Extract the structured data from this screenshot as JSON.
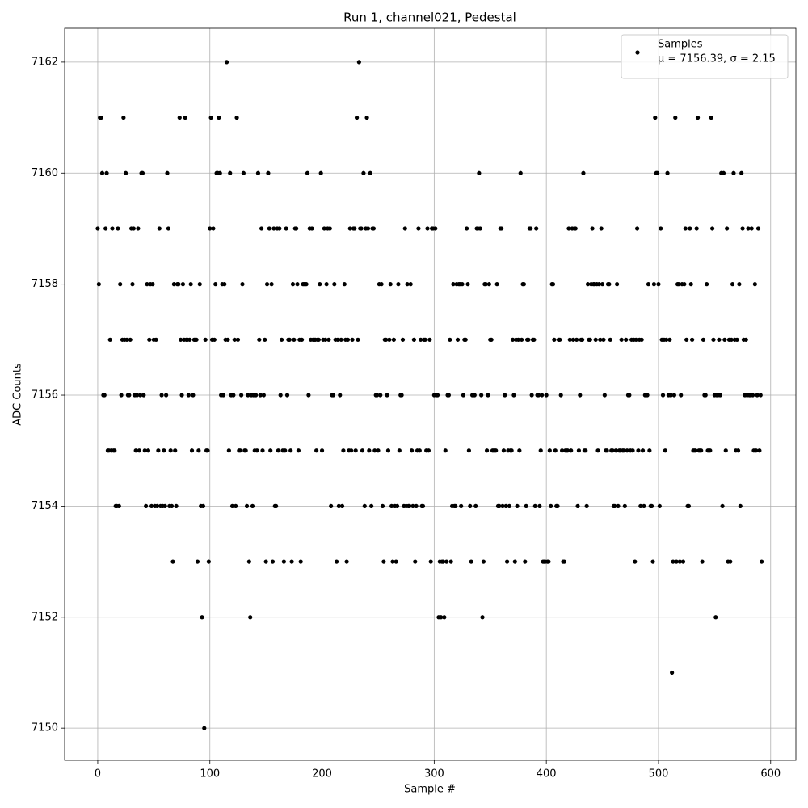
{
  "chart_data": {
    "type": "scatter",
    "title": "Run 1, channel021, Pedestal",
    "xlabel": "Sample #",
    "ylabel": "ADC Counts",
    "xlim": [
      -29.5,
      622.5
    ],
    "ylim": [
      7149.42,
      7162.61
    ],
    "xticks": [
      0,
      100,
      200,
      300,
      400,
      500,
      600
    ],
    "yticks": [
      7150,
      7152,
      7154,
      7156,
      7158,
      7160,
      7162
    ],
    "grid": true,
    "legend": "upper right",
    "x": [
      0,
      1,
      2,
      3,
      4,
      5,
      6,
      7,
      8,
      9,
      10,
      11,
      12,
      13,
      14,
      15,
      16,
      17,
      18,
      19,
      20,
      21,
      22,
      23,
      24,
      25,
      26,
      27,
      28,
      29,
      30,
      31,
      32,
      33,
      34,
      35,
      36,
      37,
      38,
      39,
      40,
      41,
      42,
      43,
      44,
      45,
      46,
      47,
      48,
      49,
      50,
      51,
      52,
      53,
      54,
      55,
      56,
      57,
      58,
      59,
      60,
      61,
      62,
      63,
      64,
      65,
      66,
      67,
      68,
      69,
      70,
      71,
      72,
      73,
      74,
      75,
      76,
      77,
      78,
      79,
      80,
      81,
      82,
      83,
      84,
      85,
      86,
      87,
      88,
      89,
      90,
      91,
      92,
      93,
      94,
      95,
      96,
      97,
      98,
      99,
      100,
      101,
      102,
      103,
      104,
      105,
      106,
      107,
      108,
      109,
      110,
      111,
      112,
      113,
      114,
      115,
      116,
      117,
      118,
      119,
      120,
      121,
      122,
      123,
      124,
      125,
      126,
      127,
      128,
      129,
      130,
      131,
      132,
      133,
      134,
      135,
      136,
      137,
      138,
      139,
      140,
      141,
      142,
      143,
      144,
      145,
      146,
      147,
      148,
      149,
      150,
      151,
      152,
      153,
      154,
      155,
      156,
      157,
      158,
      159,
      160,
      161,
      162,
      163,
      164,
      165,
      166,
      167,
      168,
      169,
      170,
      171,
      172,
      173,
      174,
      175,
      176,
      177,
      178,
      179,
      180,
      181,
      182,
      183,
      184,
      185,
      186,
      187,
      188,
      189,
      190,
      191,
      192,
      193,
      194,
      195,
      196,
      197,
      198,
      199,
      200,
      201,
      202,
      203,
      204,
      205,
      206,
      207,
      208,
      209,
      210,
      211,
      212,
      213,
      214,
      215,
      216,
      217,
      218,
      219,
      220,
      221,
      222,
      223,
      224,
      225,
      226,
      227,
      228,
      229,
      230,
      231,
      232,
      233,
      234,
      235,
      236,
      237,
      238,
      239,
      240,
      241,
      242,
      243,
      244,
      245,
      246,
      247,
      248,
      249,
      250,
      251,
      252,
      253,
      254,
      255,
      256,
      257,
      258,
      259,
      260,
      261,
      262,
      263,
      264,
      265,
      266,
      267,
      268,
      269,
      270,
      271,
      272,
      273,
      274,
      275,
      276,
      277,
      278,
      279,
      280,
      281,
      282,
      283,
      284,
      285,
      286,
      287,
      288,
      289,
      290,
      291,
      292,
      293,
      294,
      295,
      296,
      297,
      298,
      299,
      300,
      301,
      302,
      303,
      304,
      305,
      306,
      307,
      308,
      309,
      310,
      311,
      312,
      313,
      314,
      315,
      316,
      317,
      318,
      319,
      320,
      321,
      322,
      323,
      324,
      325,
      326,
      327,
      328,
      329,
      330,
      331,
      332,
      333,
      334,
      335,
      336,
      337,
      338,
      339,
      340,
      341,
      342,
      343,
      344,
      345,
      346,
      347,
      348,
      349,
      350,
      351,
      352,
      353,
      354,
      355,
      356,
      357,
      358,
      359,
      360,
      361,
      362,
      363,
      364,
      365,
      366,
      367,
      368,
      369,
      370,
      371,
      372,
      373,
      374,
      375,
      376,
      377,
      378,
      379,
      380,
      381,
      382,
      383,
      384,
      385,
      386,
      387,
      388,
      389,
      390,
      391,
      392,
      393,
      394,
      395,
      396,
      397,
      398,
      399,
      400,
      401,
      402,
      403,
      404,
      405,
      406,
      407,
      408,
      409,
      410,
      411,
      412,
      413,
      414,
      415,
      416,
      417,
      418,
      419,
      420,
      421,
      422,
      423,
      424,
      425,
      426,
      427,
      428,
      429,
      430,
      431,
      432,
      433,
      434,
      435,
      436,
      437,
      438,
      439,
      440,
      441,
      442,
      443,
      444,
      445,
      446,
      447,
      448,
      449,
      450,
      451,
      452,
      453,
      454,
      455,
      456,
      457,
      458,
      459,
      460,
      461,
      462,
      463,
      464,
      465,
      466,
      467,
      468,
      469,
      470,
      471,
      472,
      473,
      474,
      475,
      476,
      477,
      478,
      479,
      480,
      481,
      482,
      483,
      484,
      485,
      486,
      487,
      488,
      489,
      490,
      491,
      492,
      493,
      494,
      495,
      496,
      497,
      498,
      499,
      500,
      501,
      502,
      503,
      504,
      505,
      506,
      507,
      508,
      509,
      510,
      511,
      512,
      513,
      514,
      515,
      516,
      517,
      518,
      519,
      520,
      521,
      522,
      523,
      524,
      525,
      526,
      527,
      528,
      529,
      530,
      531,
      532,
      533,
      534,
      535,
      536,
      537,
      538,
      539,
      540,
      541,
      542,
      543,
      544,
      545,
      546,
      547,
      548,
      549,
      550,
      551,
      552,
      553,
      554,
      555,
      556,
      557,
      558,
      559,
      560,
      561,
      562,
      563,
      564,
      565,
      566,
      567,
      568,
      569,
      570,
      571,
      572,
      573,
      574,
      575,
      576,
      577,
      578,
      579,
      580,
      581,
      582,
      583,
      584,
      585,
      586,
      587,
      588,
      589,
      590,
      591,
      592
    ],
    "series": [
      {
        "name": "Samples",
        "stats": "μ = 7156.39, σ = 2.15",
        "color": "#000000",
        "values": [
          7159,
          7158,
          7161,
          7161,
          7160,
          7156,
          7156,
          7159,
          7160,
          7155,
          7155,
          7157,
          7155,
          7159,
          7155,
          7155,
          7154,
          7154,
          7159,
          7154,
          7158,
          7156,
          7157,
          7161,
          7157,
          7160,
          7157,
          7156,
          7156,
          7157,
          7159,
          7158,
          7159,
          7156,
          7155,
          7156,
          7159,
          7155,
          7156,
          7160,
          7160,
          7156,
          7155,
          7154,
          7158,
          7155,
          7157,
          7158,
          7154,
          7158,
          7157,
          7154,
          7157,
          7154,
          7155,
          7159,
          7154,
          7156,
          7154,
          7155,
          7154,
          7156,
          7160,
          7159,
          7154,
          7155,
          7154,
          7153,
          7158,
          7155,
          7154,
          7158,
          7158,
          7161,
          7157,
          7156,
          7158,
          7157,
          7161,
          7157,
          7157,
          7156,
          7157,
          7158,
          7155,
          7156,
          7157,
          7157,
          7157,
          7153,
          7155,
          7158,
          7154,
          7152,
          7154,
          7150,
          7157,
          7155,
          7155,
          7153,
          7159,
          7161,
          7157,
          7159,
          7157,
          7158,
          7160,
          7160,
          7161,
          7160,
          7156,
          7158,
          7156,
          7158,
          7157,
          7162,
          7157,
          7155,
          7160,
          7156,
          7154,
          7156,
          7157,
          7154,
          7161,
          7157,
          7155,
          7155,
          7156,
          7158,
          7160,
          7155,
          7155,
          7154,
          7156,
          7153,
          7152,
          7156,
          7154,
          7156,
          7155,
          7156,
          7155,
          7160,
          7157,
          7156,
          7159,
          7155,
          7156,
          7157,
          7153,
          7158,
          7160,
          7159,
          7155,
          7158,
          7153,
          7159,
          7154,
          7154,
          7159,
          7155,
          7159,
          7156,
          7157,
          7155,
          7153,
          7155,
          7159,
          7156,
          7157,
          7157,
          7155,
          7153,
          7158,
          7157,
          7159,
          7159,
          7158,
          7155,
          7157,
          7153,
          7157,
          7158,
          7158,
          7158,
          7158,
          7160,
          7156,
          7159,
          7157,
          7159,
          7157,
          7157,
          7157,
          7155,
          7157,
          7157,
          7158,
          7160,
          7155,
          7157,
          7159,
          7157,
          7158,
          7159,
          7157,
          7159,
          7154,
          7156,
          7156,
          7158,
          7157,
          7153,
          7157,
          7154,
          7156,
          7157,
          7154,
          7155,
          7158,
          7157,
          7153,
          7157,
          7155,
          7159,
          7155,
          7157,
          7159,
          7159,
          7155,
          7161,
          7157,
          7162,
          7159,
          7159,
          7155,
          7160,
          7154,
          7159,
          7161,
          7159,
          7155,
          7160,
          7154,
          7159,
          7159,
          7155,
          7156,
          7156,
          7155,
          7158,
          7156,
          7158,
          7154,
          7153,
          7157,
          7157,
          7156,
          7155,
          7157,
          7158,
          7154,
          7153,
          7157,
          7154,
          7153,
          7154,
          7158,
          7155,
          7156,
          7156,
          7157,
          7154,
          7159,
          7154,
          7158,
          7154,
          7154,
          7158,
          7155,
          7154,
          7157,
          7153,
          7154,
          7155,
          7159,
          7155,
          7157,
          7154,
          7154,
          7157,
          7157,
          7155,
          7159,
          7155,
          7157,
          7153,
          7159,
          7159,
          7156,
          7159,
          7156,
          7156,
          7152,
          7153,
          7152,
          7153,
          7153,
          7152,
          7155,
          7153,
          7156,
          7156,
          7157,
          7153,
          7154,
          7158,
          7154,
          7154,
          7158,
          7157,
          7158,
          7158,
          7154,
          7158,
          7156,
          7157,
          7157,
          7159,
          7158,
          7155,
          7154,
          7153,
          7156,
          7156,
          7156,
          7154,
          7159,
          7159,
          7160,
          7159,
          7156,
          7152,
          7153,
          7158,
          7158,
          7155,
          7156,
          7158,
          7157,
          7157,
          7155,
          7155,
          7155,
          7155,
          7158,
          7154,
          7154,
          7159,
          7159,
          7154,
          7155,
          7156,
          7154,
          7153,
          7155,
          7154,
          7155,
          7155,
          7157,
          7156,
          7153,
          7157,
          7154,
          7157,
          7155,
          7160,
          7157,
          7158,
          7158,
          7153,
          7154,
          7157,
          7157,
          7159,
          7159,
          7156,
          7157,
          7157,
          7154,
          7159,
          7156,
          7156,
          7154,
          7155,
          7156,
          7153,
          7153,
          7153,
          7156,
          7153,
          7153,
          7155,
          7154,
          7158,
          7158,
          7157,
          7155,
          7154,
          7154,
          7157,
          7157,
          7156,
          7155,
          7153,
          7153,
          7155,
          7155,
          7155,
          7159,
          7157,
          7155,
          7159,
          7157,
          7159,
          7159,
          7157,
          7154,
          7155,
          7156,
          7157,
          7157,
          7160,
          7155,
          7155,
          7154,
          7158,
          7157,
          7157,
          7158,
          7159,
          7158,
          7158,
          7157,
          7158,
          7155,
          7158,
          7157,
          7159,
          7158,
          7157,
          7156,
          7155,
          7155,
          7158,
          7158,
          7157,
          7155,
          7155,
          7154,
          7154,
          7155,
          7158,
          7154,
          7155,
          7155,
          7157,
          7155,
          7155,
          7154,
          7157,
          7155,
          7156,
          7156,
          7155,
          7157,
          7155,
          7157,
          7153,
          7157,
          7159,
          7155,
          7157,
          7154,
          7157,
          7155,
          7154,
          7156,
          7156,
          7156,
          7158,
          7155,
          7154,
          7154,
          7153,
          7158,
          7161,
          7160,
          7160,
          7158,
          7154,
          7159,
          7157,
          7156,
          7157,
          7155,
          7157,
          7160,
          7156,
          7157,
          7156,
          7151,
          7153,
          7156,
          7161,
          7153,
          7158,
          7158,
          7153,
          7156,
          7158,
          7153,
          7158,
          7159,
          7157,
          7154,
          7154,
          7159,
          7158,
          7157,
          7155,
          7155,
          7155,
          7159,
          7161,
          7155,
          7155,
          7155,
          7153,
          7157,
          7156,
          7156,
          7158,
          7155,
          7155,
          7155,
          7161,
          7159,
          7157,
          7156,
          7152,
          7156,
          7156,
          7157,
          7156,
          7160,
          7154,
          7160,
          7157,
          7155,
          7159,
          7153,
          7157,
          7153,
          7157,
          7158,
          7160,
          7157,
          7155,
          7157,
          7155,
          7158,
          7154,
          7160,
          7159,
          7157,
          7156,
          7157,
          7156,
          7159,
          7156,
          7156,
          7159,
          7156,
          7155,
          7158,
          7155,
          7156,
          7159,
          7155,
          7156,
          7153
        ]
      }
    ]
  }
}
